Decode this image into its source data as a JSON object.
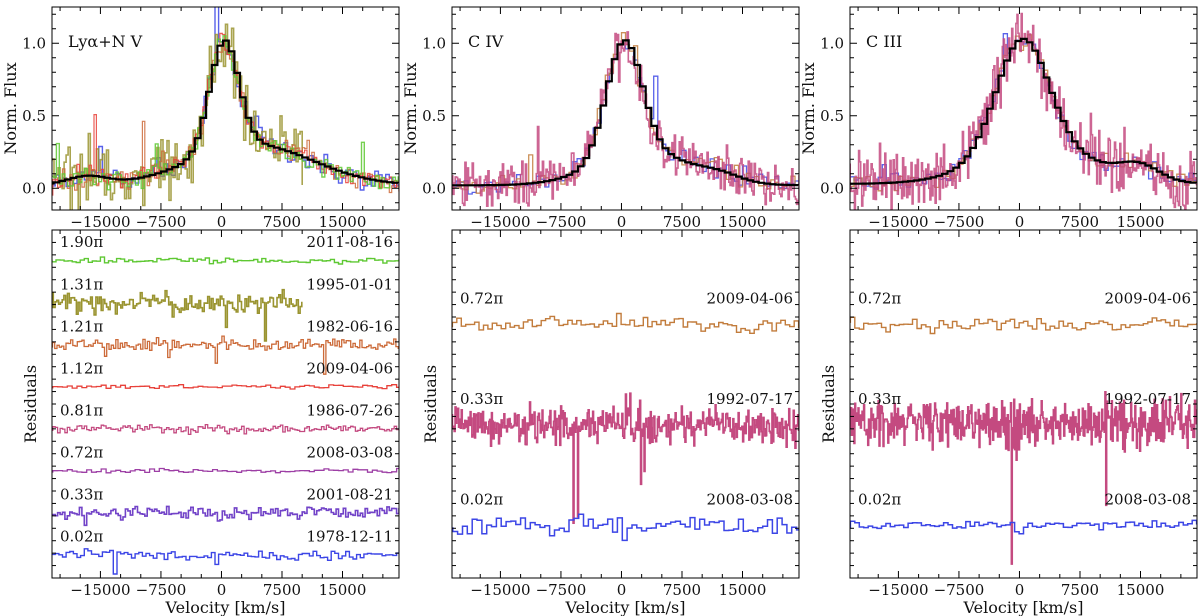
{
  "figure": {
    "x_axis_label": "Velocity [km/s]",
    "top_y_label": "Norm. Flux",
    "bottom_y_label": "Residuals"
  },
  "colors": {
    "model": "#000000",
    "green": "#5ec832",
    "olive": "#9a9430",
    "orange": "#cc6a38",
    "red": "#e8413a",
    "pink": "#c44a80",
    "purple": "#9d3fa5",
    "violet": "#7243c8",
    "blue": "#3c46e6",
    "tan": "#c27c3c"
  },
  "chart_data": [
    {
      "type": "line",
      "title": "Lyα+N V",
      "panel": "top",
      "xlim": [
        -21000,
        22000
      ],
      "ylim": [
        -0.15,
        1.25
      ],
      "xticks": [
        "−15000",
        "−7500",
        "0",
        "7500",
        "15000"
      ],
      "xtick_values": [
        -15000,
        -7500,
        0,
        7500,
        15000
      ],
      "yticks": [
        "0.0",
        "0.5",
        "1.0"
      ],
      "ytick_values": [
        0,
        0.5,
        1.0
      ],
      "ylabel": "Norm. Flux",
      "profile": {
        "core_sigma": 1800,
        "wing_sigma": 7500,
        "wing_amp": 0.28,
        "wing_center": 3500,
        "baseline": 0.02,
        "bump_center": -17000,
        "bump_amp": 0.06
      },
      "series": [
        {
          "name": "model",
          "color_key": "model",
          "noise": 0.0,
          "step": 700,
          "width": 2.2
        },
        {
          "name": "blue",
          "color_key": "blue",
          "noise": 0.07,
          "step": 450,
          "width": 1.4
        },
        {
          "name": "olive",
          "color_key": "olive",
          "noise": 0.16,
          "step": 250,
          "width": 1.6,
          "xmax": 10000
        },
        {
          "name": "orange",
          "color_key": "orange",
          "noise": 0.06,
          "step": 300,
          "width": 1.2
        },
        {
          "name": "red",
          "color_key": "red",
          "noise": 0.05,
          "step": 300,
          "width": 1.2
        },
        {
          "name": "green",
          "color_key": "green",
          "noise": 0.05,
          "step": 350,
          "width": 1.4
        }
      ]
    },
    {
      "type": "line",
      "title": "C IV",
      "panel": "top",
      "xlim": [
        -21000,
        22000
      ],
      "ylim": [
        -0.15,
        1.25
      ],
      "xticks": [
        "−15000",
        "−7500",
        "0",
        "7500",
        "15000"
      ],
      "xtick_values": [
        -15000,
        -7500,
        0,
        7500,
        15000
      ],
      "yticks": [
        "0.0",
        "0.5",
        "1.0"
      ],
      "ytick_values": [
        0,
        0.5,
        1.0
      ],
      "ylabel": "Norm. Flux",
      "profile": {
        "core_sigma": 2200,
        "wing_sigma": 6000,
        "wing_amp": 0.22,
        "wing_center": 2500,
        "baseline": 0.02,
        "bump_center": 12000,
        "bump_amp": 0.04
      },
      "series": [
        {
          "name": "model",
          "color_key": "model",
          "noise": 0.0,
          "step": 700,
          "width": 2.2
        },
        {
          "name": "blue",
          "color_key": "blue",
          "noise": 0.05,
          "step": 500,
          "width": 1.3
        },
        {
          "name": "tan",
          "color_key": "tan",
          "noise": 0.05,
          "step": 500,
          "width": 1.3
        },
        {
          "name": "pink",
          "color_key": "pink",
          "noise": 0.12,
          "step": 150,
          "width": 1.6
        }
      ]
    },
    {
      "type": "line",
      "title": "C III",
      "panel": "top",
      "xlim": [
        -21000,
        22000
      ],
      "ylim": [
        -0.15,
        1.25
      ],
      "xticks": [
        "−15000",
        "−7500",
        "0",
        "7500",
        "15000"
      ],
      "xtick_values": [
        -15000,
        -7500,
        0,
        7500,
        15000
      ],
      "yticks": [
        "0.0",
        "0.5",
        "1.0"
      ],
      "ytick_values": [
        0,
        0.5,
        1.0
      ],
      "ylabel": "Norm. Flux",
      "profile": {
        "core_sigma": 3200,
        "wing_sigma": 7000,
        "wing_amp": 0.24,
        "wing_center": 2000,
        "baseline": 0.03,
        "bump_center": 14500,
        "bump_amp": 0.1
      },
      "series": [
        {
          "name": "model",
          "color_key": "model",
          "noise": 0.0,
          "step": 700,
          "width": 2.2
        },
        {
          "name": "blue",
          "color_key": "blue",
          "noise": 0.05,
          "step": 500,
          "width": 1.3
        },
        {
          "name": "tan",
          "color_key": "tan",
          "noise": 0.05,
          "step": 500,
          "width": 1.3
        },
        {
          "name": "pink",
          "color_key": "pink",
          "noise": 0.16,
          "step": 130,
          "width": 1.6
        }
      ]
    },
    {
      "type": "line",
      "title": "",
      "panel": "bottom",
      "xlim": [
        -21000,
        22000
      ],
      "ylim": [
        -0.7,
        8.4
      ],
      "xticks": [
        "−15000",
        "−7500",
        "0",
        "7500",
        "15000"
      ],
      "xtick_values": [
        -15000,
        -7500,
        0,
        7500,
        15000
      ],
      "ylabel": "Residuals",
      "xlabel": "Velocity [km/s]",
      "series": [
        {
          "phase": "1.90π",
          "date": "2011-08-16",
          "color_key": "green",
          "offset": 7.6,
          "noise": 0.07,
          "step": 500,
          "width": 1.4
        },
        {
          "phase": "1.31π",
          "date": "1995-01-01",
          "color_key": "olive",
          "offset": 6.5,
          "noise": 0.28,
          "step": 220,
          "width": 1.6,
          "xmax": 10000
        },
        {
          "phase": "1.21π",
          "date": "1982-06-16",
          "color_key": "orange",
          "offset": 5.4,
          "noise": 0.14,
          "step": 280,
          "width": 1.3
        },
        {
          "phase": "1.12π",
          "date": "2009-04-06",
          "color_key": "red",
          "offset": 4.3,
          "noise": 0.05,
          "step": 600,
          "width": 1.3
        },
        {
          "phase": "0.81π",
          "date": "1986-07-26",
          "color_key": "pink",
          "offset": 3.2,
          "noise": 0.1,
          "step": 300,
          "width": 1.3
        },
        {
          "phase": "0.72π",
          "date": "2008-03-08",
          "color_key": "purple",
          "offset": 2.1,
          "noise": 0.06,
          "step": 600,
          "width": 1.3
        },
        {
          "phase": "0.33π",
          "date": "2001-08-21",
          "color_key": "violet",
          "offset": 1.0,
          "noise": 0.14,
          "step": 300,
          "width": 1.6
        },
        {
          "phase": "0.02π",
          "date": "1978-12-11",
          "color_key": "blue",
          "offset": -0.1,
          "noise": 0.13,
          "step": 450,
          "width": 1.4
        }
      ]
    },
    {
      "type": "line",
      "title": "",
      "panel": "bottom",
      "xlim": [
        -21000,
        22000
      ],
      "ylim": [
        -0.7,
        5.2
      ],
      "xticks": [
        "−15000",
        "−7500",
        "0",
        "7500",
        "15000"
      ],
      "xtick_values": [
        -15000,
        -7500,
        0,
        7500,
        15000
      ],
      "ylabel": "Residuals",
      "xlabel": "Velocity [km/s]",
      "series": [
        {
          "phase": "0.72π",
          "date": "2009-04-06",
          "color_key": "tan",
          "offset": 3.6,
          "noise": 0.12,
          "step": 550,
          "width": 1.4
        },
        {
          "phase": "0.33π",
          "date": "1992-07-17",
          "color_key": "pink",
          "offset": 1.9,
          "noise": 0.32,
          "step": 110,
          "width": 1.7
        },
        {
          "phase": "0.02π",
          "date": "2008-03-08",
          "color_key": "blue",
          "offset": 0.2,
          "noise": 0.16,
          "step": 600,
          "width": 1.5
        }
      ]
    },
    {
      "type": "line",
      "title": "",
      "panel": "bottom",
      "xlim": [
        -21000,
        22000
      ],
      "ylim": [
        -0.7,
        5.2
      ],
      "xticks": [
        "−15000",
        "−7500",
        "0",
        "7500",
        "15000"
      ],
      "xtick_values": [
        -15000,
        -7500,
        0,
        7500,
        15000
      ],
      "ylabel": "Residuals",
      "xlabel": "Velocity [km/s]",
      "series": [
        {
          "phase": "0.72π",
          "date": "2009-04-06",
          "color_key": "tan",
          "offset": 3.6,
          "noise": 0.12,
          "step": 550,
          "width": 1.4
        },
        {
          "phase": "0.33π",
          "date": "1992-07-17",
          "color_key": "pink",
          "offset": 1.9,
          "noise": 0.42,
          "step": 100,
          "width": 1.7
        },
        {
          "phase": "0.02π",
          "date": "2008-03-08",
          "color_key": "blue",
          "offset": 0.2,
          "noise": 0.06,
          "step": 550,
          "width": 1.5
        }
      ]
    }
  ]
}
